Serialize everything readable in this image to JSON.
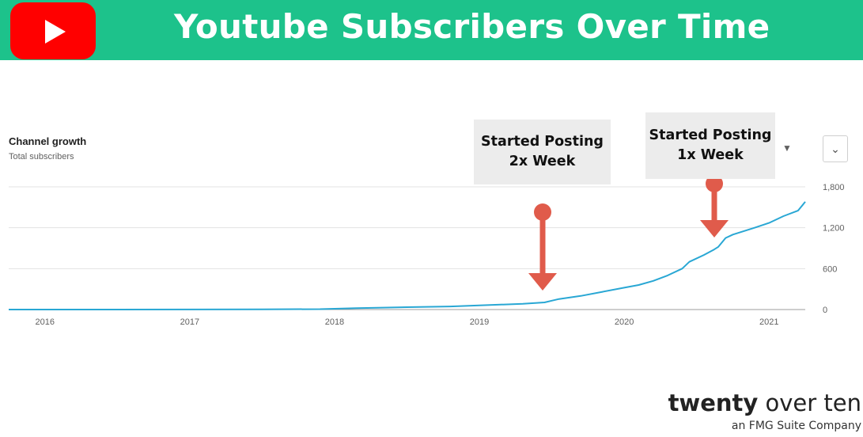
{
  "header": {
    "title": "Youtube Subscribers Over Time",
    "logo_icon": "youtube-play-icon"
  },
  "card": {
    "title": "Channel growth",
    "subtitle": "Total subscribers",
    "menu_icon": "chevron-down-icon",
    "dropdown_icon": "caret-down-icon"
  },
  "annotations": [
    {
      "line1": "Started Posting",
      "line2": "2x Week",
      "date": 2019.5
    },
    {
      "line1": "Started Posting",
      "line2": "1x Week",
      "date": 2020.62
    }
  ],
  "brand": {
    "name_bold": "twenty",
    "name_rest": " over ten",
    "tagline": "an FMG Suite Company"
  },
  "colors": {
    "header": "#1dc28b",
    "line": "#29a7d4",
    "arrow": "#e05b4b",
    "youtube": "#ff0000"
  },
  "chart_data": {
    "type": "line",
    "title": "Channel growth",
    "subtitle": "Total subscribers",
    "xlabel": "",
    "ylabel": "",
    "x_ticks": [
      "2016",
      "2017",
      "2018",
      "2019",
      "2020",
      "2021"
    ],
    "y_ticks": [
      "1,800",
      "1,200",
      "600",
      "0"
    ],
    "ylim": [
      0,
      1800
    ],
    "xlim": [
      2015.75,
      2021.25
    ],
    "series": [
      {
        "name": "Total subscribers",
        "x": [
          2015.75,
          2016.5,
          2017.5,
          2017.9,
          2018.15,
          2018.5,
          2018.8,
          2019.0,
          2019.3,
          2019.45,
          2019.5,
          2019.55,
          2019.7,
          2019.85,
          2020.0,
          2020.1,
          2020.2,
          2020.3,
          2020.4,
          2020.45,
          2020.55,
          2020.62,
          2020.65,
          2020.7,
          2020.75,
          2020.9,
          2021.0,
          2021.1,
          2021.2,
          2021.25
        ],
        "values": [
          0,
          0,
          3,
          6,
          20,
          35,
          45,
          60,
          85,
          105,
          130,
          155,
          200,
          260,
          320,
          360,
          420,
          500,
          600,
          700,
          800,
          880,
          920,
          1050,
          1100,
          1200,
          1270,
          1370,
          1450,
          1580
        ]
      }
    ]
  }
}
